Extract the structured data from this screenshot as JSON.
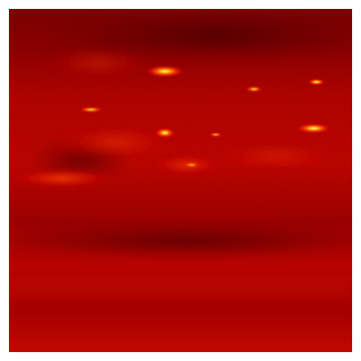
{
  "image": {
    "palette": {
      "dark": "#5a0000",
      "deep": "#7a0000",
      "mid": "#a80000",
      "bright": "#d40000",
      "hot": "#ff3000",
      "glow": "#ff8a00",
      "peak": "#ffe070"
    },
    "hotspots": [
      {
        "name": "hotspot-upper-center"
      },
      {
        "name": "hotspot-center-left"
      },
      {
        "name": "hotspot-right"
      },
      {
        "name": "hotspot-upper-right"
      },
      {
        "name": "hotspot-left-band"
      }
    ]
  }
}
